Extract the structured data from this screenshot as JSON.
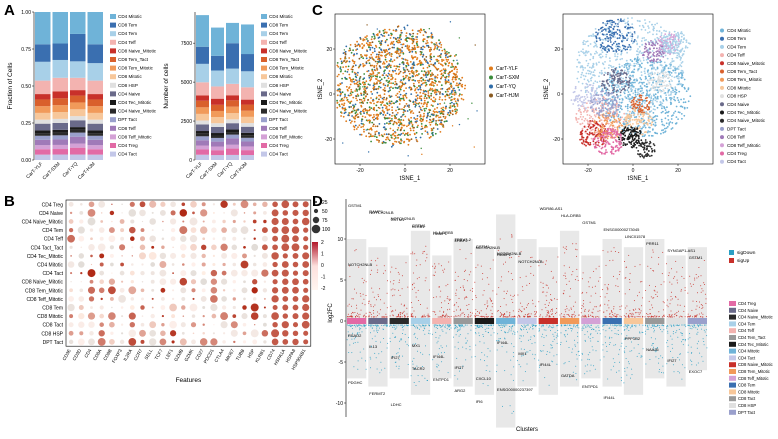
{
  "panels": {
    "A": "A",
    "B": "B",
    "C": "C",
    "D": "D"
  },
  "colors": {
    "CD4 Mitotic": "#6fb3d8",
    "CD8 Tem": "#3a6fb0",
    "CD4 Tem": "#a8d0e8",
    "CD4 Teff": "#f3b3b0",
    "CD8 Naive_Mitotic": "#c8302a",
    "CD8 Tem_Tact": "#d9602c",
    "CD8 Tem_Mitotic": "#f19a5a",
    "CD8 Mitotic": "#f7c79a",
    "CD8 HSP": "#e0e0e0",
    "CD4 Naive": "#6a6a8a",
    "CD4 Tec_Mitotic": "#1a1a1a",
    "CD4 Naive_Mitotic": "#2a2a2a",
    "DPT Tact": "#9aa0cc",
    "CD8 Teff": "#a07ab8",
    "CD8 Teff_Mitotic": "#d4a1d6",
    "CD4 Treg": "#e26aa5",
    "CD4 Tact": "#c3c7e8"
  },
  "panelA": {
    "left": {
      "ylabel": "Fraction of Cells",
      "yticks": [
        "0.00",
        "0.25",
        "0.50",
        "0.75",
        "1.00"
      ],
      "categories": [
        "CarT-YLF",
        "CarT-SXM",
        "CarT-YQ",
        "CarT-HJM"
      ]
    },
    "right": {
      "ylabel": "Number of cells",
      "yticks": [
        "0",
        "2500",
        "5000",
        "7500"
      ],
      "categories": [
        "CarT-YLF",
        "CarT-SXM",
        "CarT-YQ",
        "CarT-HJM"
      ]
    },
    "legend": [
      "CD4 Mitotic",
      "CD8 Tem",
      "CD4 Tem",
      "CD4 Teff",
      "CD8 Naive_Mitotic",
      "CD8 Tem_Tact",
      "CD8 Tem_Mitotic",
      "CD8 Mitotic",
      "CD8 HSP",
      "CD4 Naive",
      "CD4 Tec_Mitotic",
      "CD4 Naive_Mitotic",
      "DPT Tact",
      "CD8 Teff",
      "CD8 Teff_Mitotic",
      "CD4 Treg",
      "CD4 Tact"
    ]
  },
  "chart_data": [
    {
      "type": "bar",
      "title": "",
      "ylabel": "Fraction of Cells",
      "categories": [
        "CarT-YLF",
        "CarT-SXM",
        "CarT-YQ",
        "CarT-HJM"
      ],
      "ylim": [
        0,
        1
      ],
      "series": [
        {
          "name": "CD4 Tact",
          "values": [
            0.04,
            0.04,
            0.04,
            0.04
          ]
        },
        {
          "name": "CD4 Treg",
          "values": [
            0.04,
            0.04,
            0.05,
            0.04
          ]
        },
        {
          "name": "CD8 Teff_Mitotic",
          "values": [
            0.03,
            0.03,
            0.03,
            0.03
          ]
        },
        {
          "name": "CD8 Teff",
          "values": [
            0.04,
            0.04,
            0.05,
            0.04
          ]
        },
        {
          "name": "DPT Tact",
          "values": [
            0.03,
            0.03,
            0.03,
            0.03
          ]
        },
        {
          "name": "CD4 Naive_Mitotic",
          "values": [
            0.02,
            0.02,
            0.02,
            0.02
          ]
        },
        {
          "name": "CD4 Tec_Mitotic",
          "values": [
            0.02,
            0.02,
            0.02,
            0.02
          ]
        },
        {
          "name": "CD4 Naive",
          "values": [
            0.05,
            0.05,
            0.05,
            0.05
          ]
        },
        {
          "name": "CD8 HSP",
          "values": [
            0.03,
            0.03,
            0.03,
            0.03
          ]
        },
        {
          "name": "CD8 Mitotic",
          "values": [
            0.05,
            0.05,
            0.05,
            0.05
          ]
        },
        {
          "name": "CD8 Tem_Mitotic",
          "values": [
            0.05,
            0.05,
            0.05,
            0.05
          ]
        },
        {
          "name": "CD8 Tem_Tact",
          "values": [
            0.05,
            0.05,
            0.05,
            0.05
          ]
        },
        {
          "name": "CD8 Naive_Mitotic",
          "values": [
            0.04,
            0.05,
            0.04,
            0.04
          ]
        },
        {
          "name": "CD4 Teff",
          "values": [
            0.1,
            0.1,
            0.09,
            0.1
          ]
        },
        {
          "name": "CD4 Tem",
          "values": [
            0.14,
            0.13,
            0.12,
            0.13
          ]
        },
        {
          "name": "CD8 Tem",
          "values": [
            0.13,
            0.12,
            0.2,
            0.14
          ]
        },
        {
          "name": "CD4 Mitotic",
          "values": [
            0.24,
            0.23,
            0.16,
            0.24
          ]
        }
      ]
    },
    {
      "type": "bar",
      "ylabel": "Number of cells",
      "categories": [
        "CarT-YLF",
        "CarT-SXM",
        "CarT-YQ",
        "CarT-HJM"
      ],
      "ylim": [
        0,
        9500
      ],
      "values": [
        9300,
        8500,
        8800,
        8700
      ]
    },
    {
      "type": "scatter",
      "xlabel": "tSNE_1",
      "ylabel": "tSNE_2",
      "xticks": [
        "-20",
        "0",
        "20"
      ],
      "yticks": [
        "-20",
        "0",
        "20"
      ],
      "legend": [
        "CarT-YLF",
        "CarT-SXM",
        "CarT-YQ",
        "CarT-HJM"
      ]
    },
    {
      "type": "scatter",
      "xlabel": "tSNE_1",
      "ylabel": "tSNE_2",
      "xticks": [
        "-20",
        "0",
        "20"
      ],
      "yticks": [
        "-20",
        "0",
        "20"
      ]
    },
    {
      "type": "heatmap",
      "xlabel": "Features",
      "rows": [
        "CD4 Treg",
        "CD4 Naive",
        "CD4 Naive_Mitotic",
        "CD4 Tem",
        "CD4 Teff",
        "CD4 Tact_Tact",
        "CD4 Tec_Mitotic",
        "CD4 Mitotic",
        "CD4 Tact",
        "CD8 Naive_Mitotic",
        "CD8 Tem_Mitotic",
        "CD8 Teff_Mitotic",
        "CD8 Tem",
        "CD8 Mitotic",
        "CD8 Tact",
        "CD8 HSP",
        "DPT Tact"
      ],
      "columns": [
        "CD3E",
        "CD3D",
        "CD4",
        "CD8A",
        "CD8B",
        "FOXP3",
        "IL2RA",
        "CCR7",
        "SELL",
        "TCF7",
        "LEF1",
        "GZMB",
        "GZMK",
        "CD27",
        "PDCD1",
        "CTLA4",
        "MKI67",
        "TUBB",
        "HSP",
        "KLRB1",
        "CD74",
        "HSPA1A",
        "HSPA8",
        "HSP90AB1"
      ],
      "size_legend": [
        "25",
        "50",
        "75",
        "100"
      ],
      "color_legend": [
        "2",
        "1",
        "0",
        "-1",
        "-2"
      ]
    },
    {
      "type": "bar",
      "xlabel": "Clusters",
      "ylabel": "log2FC",
      "yticks": [
        "10",
        "5",
        "0",
        "-5",
        "-10",
        "-15"
      ],
      "legend_sig": [
        "sigDown",
        "sigUp"
      ]
    }
  ],
  "panelC": {
    "left_legend": [
      "CarT-YLF",
      "CarT-SXM",
      "CarT-YQ",
      "CarT-HJM"
    ],
    "right_legend": [
      "CD4 Mitotic",
      "CD8 Tem",
      "CD4 Tem",
      "CD4 Teff",
      "CD8 Naive_Mitotic",
      "CD8 Tem_Tact",
      "CD8 Tem_Mitotic",
      "CD8 Mitotic",
      "CD8 HSP",
      "CD4 Naive",
      "CD4 Tec_Mitotic",
      "CD4 Naive_Mitotic",
      "DPT Tact",
      "CD8 Teff",
      "CD8 Teff_Mitotic",
      "CD4 Treg",
      "CD4 Tact"
    ]
  },
  "panelB": {
    "size_legend": [
      "25",
      "50",
      "75",
      "100"
    ]
  },
  "panelD": {
    "labels_up": [
      "GSTM1",
      "NOTCH2NLB",
      "GSTM1",
      "KLRB1",
      "RAMP1",
      "ERAP2",
      "NOTCH2NLB",
      "RAMP1",
      "NOTCH2NLB",
      "WDR86-AS1",
      "HLA-DRB5",
      "GSTM1",
      "ENSG00000273045",
      "LINC01578",
      "PRR11",
      "SYNGAP1-AS1",
      "GSTM1",
      "NOTCH2NLB",
      "RAMP1",
      "NOTCH2NLB",
      "GSTM1",
      "HLA-DRB5",
      "TRBV7-2",
      "GSTM1",
      "NOTCH2NLB"
    ],
    "labels_down": [
      "RSAD2",
      "IL13",
      "IFI27",
      "TACR2",
      "ENTPD1",
      "ARG2",
      "IFI6",
      "IFI44L",
      "MX1",
      "IFI44L",
      "GATDA",
      "ENTPD1",
      "IFI44L",
      "PPP1R2",
      "NAAJ6",
      "IFI27",
      "EXOC7",
      "PDGHC",
      "FERMT2",
      "LDHC",
      "MX1",
      "IFI44L",
      "IFI27",
      "CXCL10",
      "ENSG00000237397"
    ],
    "legend_clusters": [
      "CD4 Treg",
      "CD4 Naive",
      "CD4 Naive_Mitotic",
      "CD4 Tem",
      "CD4 Teff",
      "CD4 Tem_Tact",
      "CD4 Tec_Mitotic",
      "CD4 Mitotic",
      "CD4 Tact",
      "CD8 Naive_Mitotic",
      "CD8 Tem_Mitotic",
      "CD8 Teff_Mitotic",
      "CD8 Tem",
      "CD8 Mitotic",
      "CD8 Tact",
      "CD8 HSP",
      "DPT Tact"
    ]
  }
}
